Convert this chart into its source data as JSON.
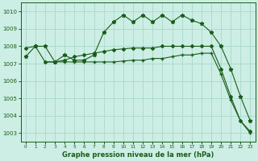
{
  "title": "Graphe pression niveau de la mer (hPa)",
  "background_color": "#cceee4",
  "line_color": "#1a5c1a",
  "grid_color": "#aad8cc",
  "xlim": [
    -0.5,
    23.5
  ],
  "ylim": [
    1002.5,
    1010.5
  ],
  "yticks": [
    1003,
    1004,
    1005,
    1006,
    1007,
    1008,
    1009,
    1010
  ],
  "xticks": [
    0,
    1,
    2,
    3,
    4,
    5,
    6,
    7,
    8,
    9,
    10,
    11,
    12,
    13,
    14,
    15,
    16,
    17,
    18,
    19,
    20,
    21,
    22,
    23
  ],
  "series1_x": [
    0,
    1,
    2,
    3,
    4,
    5,
    6,
    7,
    8,
    9,
    10,
    11,
    12,
    13,
    14,
    15,
    16,
    17,
    18,
    19,
    20,
    21,
    22,
    23
  ],
  "series1_y": [
    1007.4,
    1008.0,
    1008.0,
    1007.1,
    1007.5,
    1007.2,
    1007.2,
    1007.5,
    1008.8,
    1009.4,
    1009.8,
    1009.4,
    1009.8,
    1009.4,
    1009.8,
    1009.4,
    1009.8,
    1009.5,
    1009.3,
    1008.8,
    1008.0,
    1006.7,
    1005.1,
    1003.7
  ],
  "series2_x": [
    0,
    1,
    2,
    3,
    4,
    5,
    6,
    7,
    8,
    9,
    10,
    11,
    12,
    13,
    14,
    15,
    16,
    17,
    18,
    19,
    20,
    21,
    22,
    23
  ],
  "series2_y": [
    1007.9,
    1008.0,
    1007.1,
    1007.1,
    1007.2,
    1007.4,
    1007.5,
    1007.6,
    1007.7,
    1007.8,
    1007.85,
    1007.9,
    1007.9,
    1007.9,
    1008.0,
    1008.0,
    1008.0,
    1008.0,
    1008.0,
    1008.0,
    1006.7,
    1005.1,
    1003.7,
    1003.1
  ],
  "series3_x": [
    2,
    3,
    4,
    5,
    6,
    7,
    8,
    9,
    10,
    11,
    12,
    13,
    14,
    15,
    16,
    17,
    18,
    19,
    20,
    21,
    22,
    23
  ],
  "series3_y": [
    1007.1,
    1007.1,
    1007.1,
    1007.1,
    1007.1,
    1007.1,
    1007.1,
    1007.1,
    1007.15,
    1007.2,
    1007.2,
    1007.3,
    1007.3,
    1007.4,
    1007.5,
    1007.5,
    1007.6,
    1007.6,
    1006.4,
    1004.9,
    1003.7,
    1003.0
  ]
}
